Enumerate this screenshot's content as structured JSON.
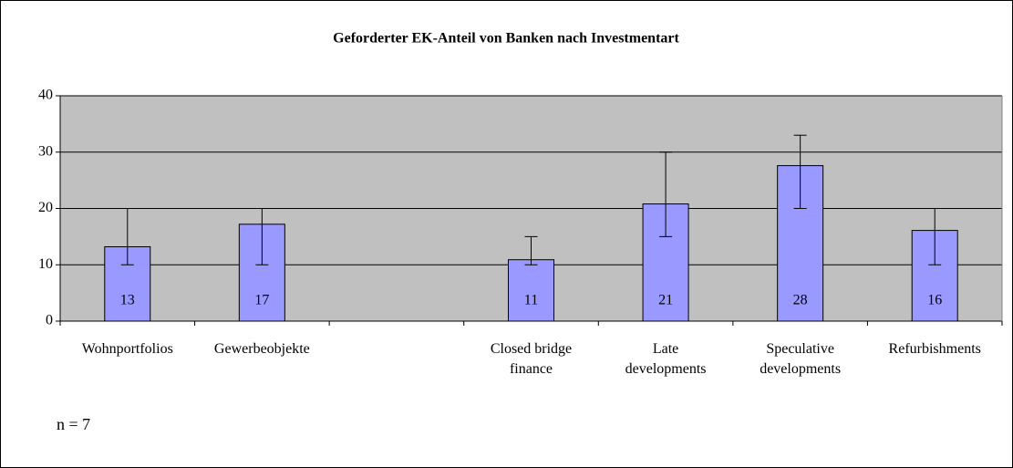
{
  "chart_data": {
    "type": "bar",
    "title": "Geforderter EK-Anteil von Banken nach Investmentart",
    "categories": [
      "Wohnportfolios",
      "Gewerbeobjekte",
      null,
      "Closed bridge finance",
      "Late developments",
      "Speculative developments",
      "Refurbishments"
    ],
    "values": [
      13.2,
      17.2,
      null,
      10.9,
      20.8,
      27.6,
      16.1
    ],
    "value_labels": [
      "13",
      "17",
      null,
      "11",
      "21",
      "28",
      "16"
    ],
    "error_low": [
      10,
      10,
      null,
      10,
      15,
      20,
      10
    ],
    "error_high": [
      20,
      20,
      null,
      15,
      30,
      33,
      20
    ],
    "color": "#9999ff",
    "ylim": [
      0,
      40
    ],
    "yticks": [
      0,
      10,
      20,
      30,
      40
    ],
    "grid": true,
    "annotation": "n = 7"
  }
}
